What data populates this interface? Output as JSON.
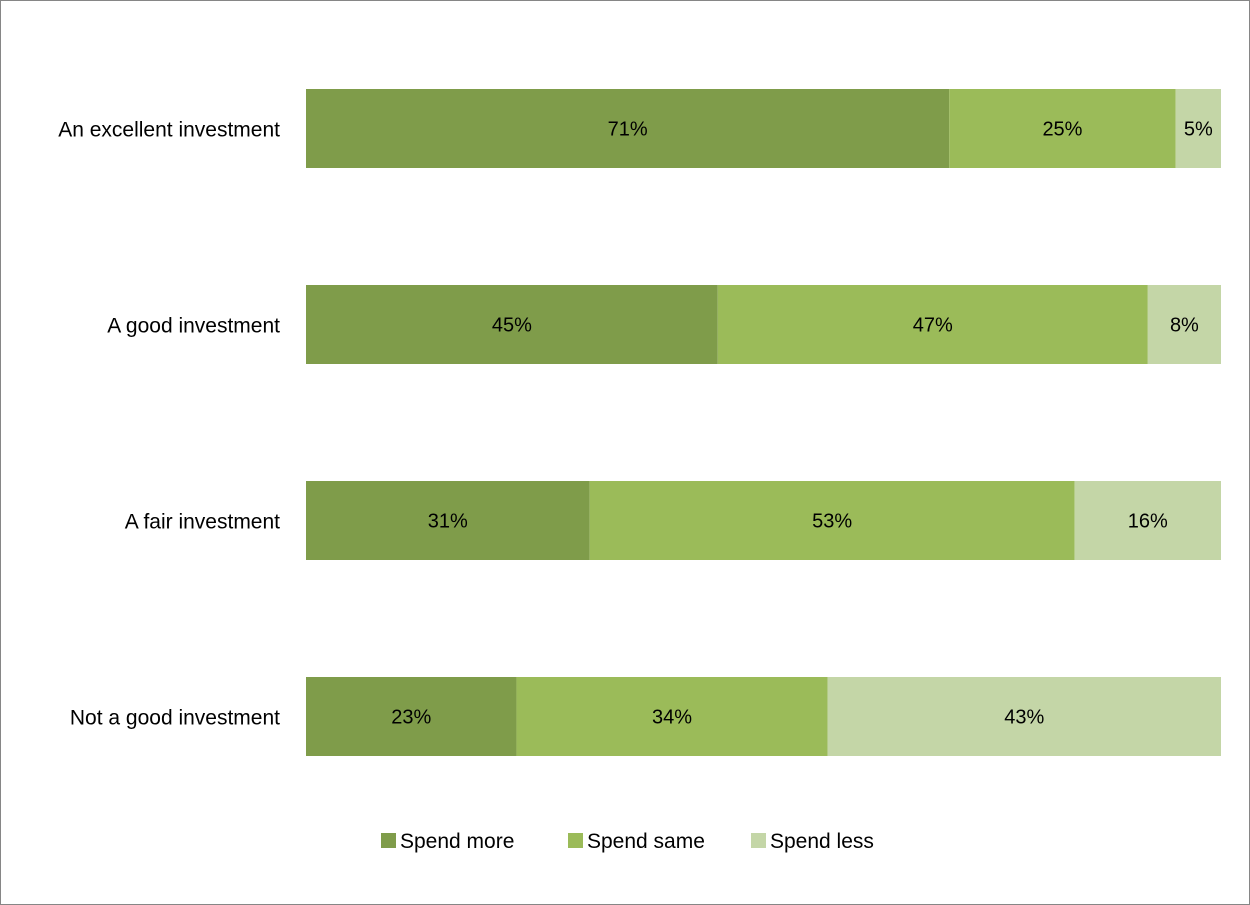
{
  "chart_data": {
    "type": "bar",
    "orientation": "horizontal",
    "stacked": "percent",
    "categories": [
      "An excellent investment",
      "A good investment",
      "A fair investment",
      "Not a good investment"
    ],
    "series": [
      {
        "name": "Spend more",
        "color": "#7F9C4A",
        "values": [
          71,
          45,
          31,
          23
        ],
        "labels": [
          "71%",
          "45%",
          "31%",
          "23%"
        ]
      },
      {
        "name": "Spend same",
        "color": "#9BBB59",
        "values": [
          25,
          47,
          53,
          34
        ],
        "labels": [
          "25%",
          "47%",
          "53%",
          "34%"
        ]
      },
      {
        "name": "Spend less",
        "color": "#C4D6A7",
        "values": [
          5,
          8,
          16,
          43
        ],
        "labels": [
          "5%",
          "8%",
          "16%",
          "43%"
        ]
      }
    ],
    "xlim": [
      0,
      100
    ],
    "grid": false,
    "legend_position": "bottom"
  }
}
